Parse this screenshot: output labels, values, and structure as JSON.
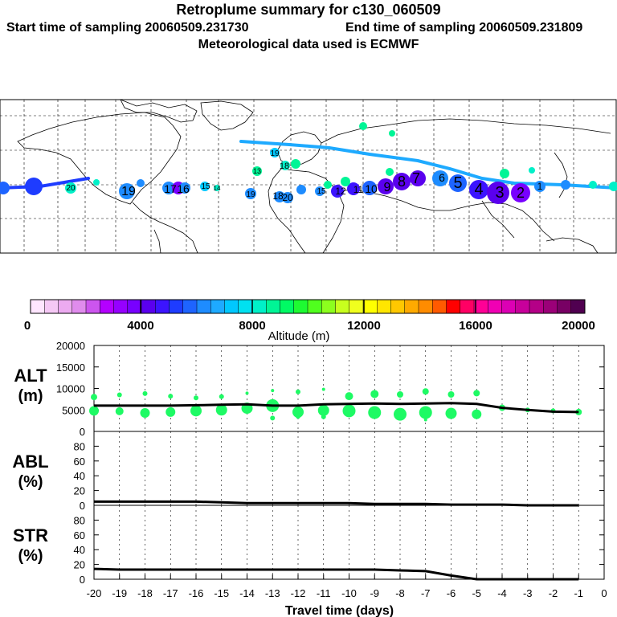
{
  "header": {
    "title": "Retroplume summary for c130_060509",
    "start_label": "Start time of sampling 20060509.231730",
    "end_label": "End time of sampling 20060509.231809",
    "met_label": "Meteorological data used is ECMWF"
  },
  "colorbar": {
    "title": "Altitude (m)",
    "ticks": [
      "0",
      "4000",
      "8000",
      "12000",
      "16000",
      "20000"
    ],
    "colors": [
      "#ffe6ff",
      "#f5c8f5",
      "#ecaaf0",
      "#e08ced",
      "#cc55ee",
      "#b400ff",
      "#9600ff",
      "#7800ff",
      "#5a00ee",
      "#3c14ff",
      "#1e3cff",
      "#1e64ff",
      "#1e8cff",
      "#1eaaff",
      "#00c8ff",
      "#00e1f0",
      "#00f0c8",
      "#00f596",
      "#00fa64",
      "#1efa32",
      "#50ff1e",
      "#8cff1e",
      "#c8ff1e",
      "#f0ff1e",
      "#ffff00",
      "#ffe600",
      "#ffc800",
      "#ffaa00",
      "#ff8c00",
      "#ff5a00",
      "#ff0000",
      "#ff0064",
      "#ff0096",
      "#f000b4",
      "#dc00b4",
      "#c8009b",
      "#b40087",
      "#9b0078",
      "#780064",
      "#500050"
    ]
  },
  "map": {
    "labels": [
      "20",
      "19",
      "17",
      "16",
      "15",
      "14",
      "13",
      "19",
      "18",
      "20",
      "19",
      "18",
      "15",
      "12",
      "11",
      "10",
      "9",
      "8",
      "7",
      "6",
      "5",
      "4",
      "3",
      "2",
      "1"
    ]
  },
  "chart_data": [
    {
      "type": "line",
      "panel": "ALT",
      "ylabel_line1": "ALT",
      "ylabel_line2": "(m)",
      "ylim": [
        0,
        20000
      ],
      "yticks": [
        "0",
        "5000",
        "10000",
        "15000",
        "20000"
      ],
      "x": [
        -20,
        -19,
        -18,
        -17,
        -16,
        -15,
        -14,
        -13,
        -12,
        -11,
        -10,
        -9,
        -8,
        -7,
        -6,
        -5,
        -4,
        -3,
        -2,
        -1
      ],
      "median": [
        6000,
        6000,
        6000,
        6000,
        6100,
        6200,
        6300,
        6000,
        6000,
        6300,
        6400,
        6500,
        6400,
        6500,
        6600,
        6400,
        5500,
        5000,
        4600,
        4500
      ],
      "points": {
        "x": [
          -20,
          -20,
          -19,
          -19,
          -18,
          -18,
          -17,
          -17,
          -16,
          -16,
          -15,
          -15,
          -14,
          -14,
          -13,
          -13,
          -13,
          -12,
          -12,
          -12,
          -11,
          -11,
          -11,
          -10,
          -10,
          -9,
          -9,
          -8,
          -8,
          -7,
          -7,
          -7,
          -6,
          -6,
          -5,
          -5,
          -4,
          -3,
          -2,
          -1
        ],
        "y": [
          8000,
          4800,
          8500,
          4700,
          8800,
          4300,
          8200,
          4500,
          7800,
          4800,
          8100,
          5000,
          8900,
          5400,
          9500,
          6000,
          3100,
          9200,
          4500,
          3500,
          9800,
          4900,
          3400,
          8200,
          4800,
          8700,
          4400,
          8600,
          4000,
          9300,
          4400,
          2700,
          8600,
          4200,
          8900,
          4000,
          5500,
          5000,
          4800,
          4500
        ],
        "size": [
          4,
          6,
          3,
          5,
          3,
          6,
          3,
          6,
          3,
          7,
          3,
          7,
          2,
          7,
          2,
          8,
          3,
          3,
          7,
          3,
          2,
          7,
          3,
          5,
          8,
          5,
          8,
          4,
          8,
          4,
          8,
          2,
          4,
          7,
          4,
          6,
          4,
          3,
          3,
          4
        ]
      }
    },
    {
      "type": "line",
      "panel": "ABL",
      "ylabel_line1": "ABL",
      "ylabel_line2": "(%)",
      "ylim": [
        0,
        100
      ],
      "yticks": [
        "0",
        "20",
        "40",
        "60",
        "80"
      ],
      "x": [
        -20,
        -19,
        -18,
        -17,
        -16,
        -15,
        -14,
        -13,
        -12,
        -11,
        -10,
        -9,
        -8,
        -7,
        -6,
        -5,
        -4,
        -3,
        -2,
        -1
      ],
      "median": [
        5,
        5,
        5,
        5,
        5,
        4,
        3,
        3,
        3,
        3,
        3,
        2,
        2,
        2,
        1,
        1,
        1,
        0,
        0,
        0
      ]
    },
    {
      "type": "line",
      "panel": "STR",
      "ylabel_line1": "STR",
      "ylabel_line2": "(%)",
      "ylim": [
        0,
        100
      ],
      "yticks": [
        "0",
        "20",
        "40",
        "60",
        "80"
      ],
      "x": [
        -20,
        -19,
        -18,
        -17,
        -16,
        -15,
        -14,
        -13,
        -12,
        -11,
        -10,
        -9,
        -8,
        -7,
        -6,
        -5,
        -4,
        -3,
        -2,
        -1
      ],
      "median": [
        14,
        13,
        13,
        13,
        13,
        13,
        13,
        13,
        13,
        13,
        13,
        13,
        12,
        11,
        5,
        0,
        0,
        0,
        0,
        0
      ],
      "xticks": [
        "-20",
        "-19",
        "-18",
        "-17",
        "-16",
        "-15",
        "-14",
        "-13",
        "-12",
        "-11",
        "-10",
        "-9",
        "-8",
        "-7",
        "-6",
        "-5",
        "-4",
        "-3",
        "-2",
        "-1",
        "0"
      ],
      "xlabel": "Travel time (days)"
    }
  ]
}
